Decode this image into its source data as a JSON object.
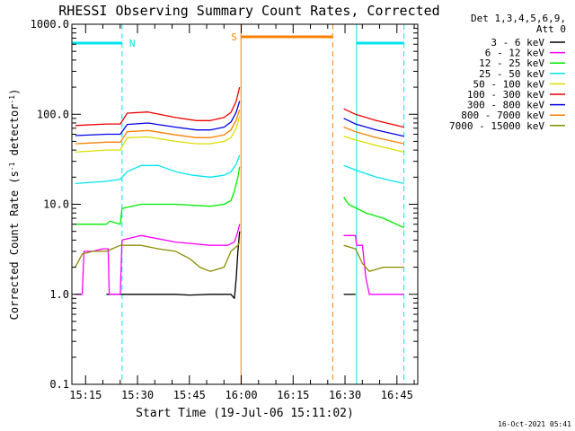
{
  "chart_data": {
    "type": "line",
    "title": "RHESSI Observing Summary Count Rates, Corrected",
    "xlabel": "Start Time (19-Jul-06 15:11:02)",
    "ylabel_parts": [
      "Corrected Count Rate (s",
      "-1",
      " detector",
      "-1",
      ")"
    ],
    "x_units": "minutes after 15:11:02",
    "xlim": [
      0,
      100
    ],
    "ylim": [
      0.1,
      1000
    ],
    "yscale": "log",
    "x_tick_labels": [
      "15:15",
      "15:30",
      "15:45",
      "16:00",
      "16:15",
      "16:30",
      "16:45"
    ],
    "x_tick_minutes": [
      3.97,
      18.97,
      33.97,
      48.97,
      63.97,
      78.97,
      93.97
    ],
    "y_tick_labels": [
      "0.1",
      "1.0",
      "10.0",
      "100.0",
      "1000.0"
    ],
    "y_tick_values": [
      0.1,
      1,
      10,
      100,
      1000
    ],
    "legend_position": "top-right",
    "legend_header": [
      "Det 1,3,4,5,6,9,",
      "Att 0"
    ],
    "timestamp": "16-Oct-2021 05:41",
    "flags": [
      {
        "label": "N",
        "color": "#00e5ee",
        "intervals": [
          [
            0,
            14.5
          ],
          [
            82.3,
            96
          ]
        ]
      },
      {
        "label": "S",
        "color": "#ff7f00",
        "intervals": [
          [
            48.9,
            75.4
          ]
        ]
      }
    ],
    "data_gap": [
      48.9,
      76.5
    ],
    "series": [
      {
        "name": "3 - 6 keV",
        "color": "#000000",
        "segments": [
          [
            [
              10,
              1
            ],
            [
              25,
              1
            ],
            [
              30,
              1
            ],
            [
              34,
              0.98
            ],
            [
              40,
              1
            ],
            [
              46,
              1
            ],
            [
              47,
              0.9
            ],
            [
              47.5,
              1.5
            ],
            [
              48,
              3
            ],
            [
              48.5,
              5
            ]
          ],
          [
            [
              78.6,
              1
            ],
            [
              82,
              1
            ]
          ]
        ]
      },
      {
        "name": "6 - 12 keV",
        "color": "#ff00ff",
        "segments": [
          [
            [
              1,
              1
            ],
            [
              3,
              1
            ],
            [
              3.5,
              3
            ],
            [
              6,
              3
            ],
            [
              9,
              3.2
            ],
            [
              10.5,
              3.2
            ],
            [
              10.8,
              1
            ],
            [
              14,
              1
            ],
            [
              14.5,
              4
            ],
            [
              20,
              4.5
            ],
            [
              30,
              3.8
            ],
            [
              40,
              3.5
            ],
            [
              45,
              3.5
            ],
            [
              47,
              3.8
            ],
            [
              48,
              5
            ],
            [
              48.5,
              6
            ]
          ],
          [
            [
              78.6,
              4.5
            ],
            [
              82,
              4.5
            ],
            [
              82.3,
              3.5
            ],
            [
              84,
              3.5
            ],
            [
              85,
              1.5
            ],
            [
              86,
              1
            ],
            [
              91,
              1
            ],
            [
              96,
              1
            ]
          ]
        ]
      },
      {
        "name": "12 - 25 keV",
        "color": "#00ee00",
        "segments": [
          [
            [
              1,
              6
            ],
            [
              10,
              6
            ],
            [
              11,
              6.5
            ],
            [
              14,
              6
            ],
            [
              14.5,
              9
            ],
            [
              20,
              10
            ],
            [
              30,
              10
            ],
            [
              40,
              9.5
            ],
            [
              44,
              10
            ],
            [
              46,
              11
            ],
            [
              47,
              14
            ],
            [
              48,
              20
            ],
            [
              48.5,
              26
            ]
          ],
          [
            [
              78.6,
              12
            ],
            [
              80,
              10
            ],
            [
              85,
              8
            ],
            [
              90,
              7
            ],
            [
              96,
              5.5
            ]
          ]
        ]
      },
      {
        "name": "25 - 50 keV",
        "color": "#00e5ee",
        "segments": [
          [
            [
              1,
              17
            ],
            [
              10,
              18
            ],
            [
              14,
              19
            ],
            [
              16,
              23
            ],
            [
              20,
              27
            ],
            [
              25,
              27
            ],
            [
              30,
              23
            ],
            [
              35,
              21
            ],
            [
              40,
              20
            ],
            [
              44,
              21
            ],
            [
              46,
              23
            ],
            [
              47.5,
              28
            ],
            [
              48.5,
              35
            ]
          ],
          [
            [
              78.6,
              27
            ],
            [
              82,
              24
            ],
            [
              88,
              20
            ],
            [
              96,
              17
            ]
          ]
        ]
      },
      {
        "name": "50 - 100 keV",
        "color": "#dddd00",
        "segments": [
          [
            [
              1,
              38
            ],
            [
              10,
              40
            ],
            [
              14,
              40
            ],
            [
              16,
              55
            ],
            [
              22,
              56
            ],
            [
              30,
              50
            ],
            [
              36,
              47
            ],
            [
              40,
              47
            ],
            [
              44,
              50
            ],
            [
              46,
              55
            ],
            [
              47.5,
              70
            ],
            [
              48.5,
              95
            ]
          ],
          [
            [
              78.6,
              57
            ],
            [
              82,
              52
            ],
            [
              88,
              45
            ],
            [
              96,
              38
            ]
          ]
        ]
      },
      {
        "name": "100 - 300 keV",
        "color": "#ee0000",
        "segments": [
          [
            [
              1,
              75
            ],
            [
              10,
              78
            ],
            [
              14,
              78
            ],
            [
              16,
              103
            ],
            [
              22,
              106
            ],
            [
              30,
              92
            ],
            [
              36,
              85
            ],
            [
              40,
              85
            ],
            [
              44,
              92
            ],
            [
              46,
              105
            ],
            [
              47.5,
              140
            ],
            [
              48.5,
              200
            ]
          ],
          [
            [
              78.6,
              115
            ],
            [
              82,
              100
            ],
            [
              88,
              85
            ],
            [
              96,
              72
            ]
          ]
        ]
      },
      {
        "name": "300 - 800 keV",
        "color": "#0000ee",
        "segments": [
          [
            [
              1,
              58
            ],
            [
              10,
              60
            ],
            [
              14,
              60
            ],
            [
              16,
              77
            ],
            [
              22,
              80
            ],
            [
              30,
              72
            ],
            [
              36,
              67
            ],
            [
              40,
              67
            ],
            [
              44,
              72
            ],
            [
              46,
              82
            ],
            [
              47.5,
              105
            ],
            [
              48.5,
              140
            ]
          ],
          [
            [
              78.6,
              90
            ],
            [
              82,
              78
            ],
            [
              88,
              67
            ],
            [
              96,
              57
            ]
          ]
        ]
      },
      {
        "name": "800 - 7000 keV",
        "color": "#ff7f00",
        "segments": [
          [
            [
              1,
              47
            ],
            [
              10,
              49
            ],
            [
              14,
              49
            ],
            [
              16,
              64
            ],
            [
              22,
              66
            ],
            [
              30,
              59
            ],
            [
              36,
              55
            ],
            [
              40,
              55
            ],
            [
              44,
              59
            ],
            [
              46,
              67
            ],
            [
              47.5,
              86
            ],
            [
              48.5,
              112
            ]
          ],
          [
            [
              78.6,
              72
            ],
            [
              82,
              64
            ],
            [
              88,
              55
            ],
            [
              96,
              47
            ]
          ]
        ]
      },
      {
        "name": "7000 - 15000 keV",
        "color": "#8b8b00",
        "segments": [
          [
            [
              1,
              2
            ],
            [
              3,
              2.8
            ],
            [
              6,
              3
            ],
            [
              10,
              3
            ],
            [
              14,
              3.5
            ],
            [
              20,
              3.5
            ],
            [
              25,
              3.2
            ],
            [
              30,
              3
            ],
            [
              34,
              2.5
            ],
            [
              37,
              2
            ],
            [
              40,
              1.8
            ],
            [
              44,
              2
            ],
            [
              46,
              3
            ],
            [
              48,
              3.5
            ],
            [
              48.5,
              3.8
            ]
          ],
          [
            [
              78.6,
              3.5
            ],
            [
              82,
              3.2
            ],
            [
              84,
              2.2
            ],
            [
              86,
              1.8
            ],
            [
              90,
              2
            ],
            [
              96,
              2
            ]
          ]
        ]
      }
    ]
  }
}
